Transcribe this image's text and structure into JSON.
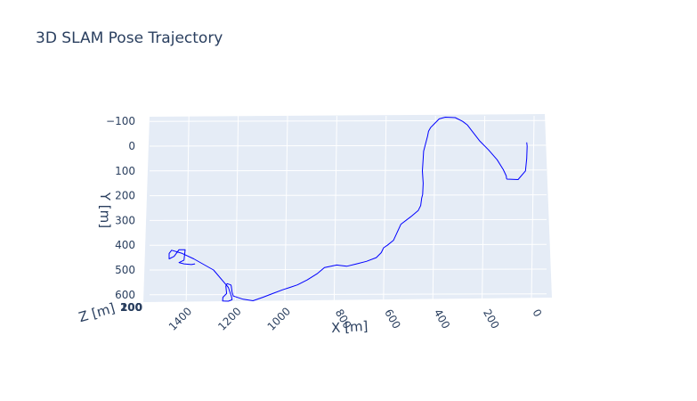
{
  "chart_data": {
    "type": "line",
    "title": "3D SLAM Pose Trajectory",
    "xlabel": "X [m]",
    "ylabel": "Y [m]",
    "zlabel": "Z [m]",
    "grid": true,
    "x_ticks": [
      "1400",
      "1200",
      "1000",
      "800",
      "600",
      "400",
      "200",
      "0"
    ],
    "y_ticks": [
      "−100",
      "0",
      "100",
      "200",
      "300",
      "400",
      "500",
      "600"
    ],
    "z_ticks_overlapping": [
      "200",
      "100",
      "0"
    ],
    "line_color": "#0000ff",
    "background_color": "#e5ecf6",
    "series": [
      {
        "x": [
          30,
          28,
          30,
          35,
          65,
          110,
          112,
          113,
          125,
          150,
          185,
          220,
          255,
          270,
          290,
          320,
          360,
          385,
          400,
          420,
          428,
          432,
          440,
          448,
          450,
          453,
          450,
          452,
          456,
          460,
          470,
          500,
          540,
          570,
          595,
          610,
          620,
          640,
          680,
          720,
          760,
          800,
          850,
          880,
          920,
          960,
          990,
          1020,
          1060,
          1100,
          1140,
          1180,
          1220,
          1225,
          1228,
          1230,
          1245,
          1250,
          1247,
          1262,
          1263,
          1240,
          1225,
          1227,
          1240,
          1300,
          1380,
          1430,
          1470,
          1480,
          1480,
          1460,
          1440,
          1415,
          1420,
          1440,
          1420,
          1390,
          1375
        ],
        "y": [
          -15,
          0,
          50,
          100,
          135,
          133,
          130,
          120,
          95,
          55,
          15,
          -20,
          -65,
          -85,
          -100,
          -115,
          -117,
          -110,
          -95,
          -75,
          -60,
          -40,
          -10,
          20,
          50,
          100,
          150,
          195,
          210,
          240,
          260,
          285,
          315,
          380,
          400,
          410,
          430,
          450,
          465,
          475,
          485,
          480,
          490,
          515,
          540,
          560,
          570,
          580,
          595,
          610,
          624,
          618,
          605,
          590,
          565,
          560,
          555,
          565,
          595,
          610,
          625,
          626,
          620,
          608,
          570,
          500,
          455,
          432,
          420,
          433,
          455,
          445,
          418,
          418,
          460,
          470,
          475,
          478,
          475
        ]
      }
    ]
  }
}
